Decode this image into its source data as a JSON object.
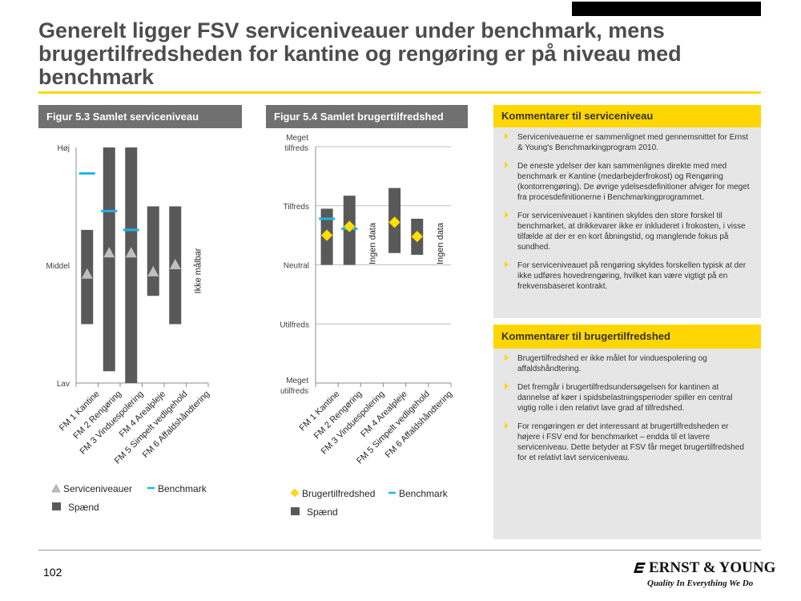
{
  "title": "Generelt ligger FSV serviceniveauer under benchmark, mens brugertilfredsheden for kantine og rengøring er på niveau med benchmark",
  "page_number": "102",
  "logo": {
    "name": "ERNST & YOUNG",
    "tagline": "Quality In Everything We Do"
  },
  "figure1": {
    "header": "Figur 5.3 Samlet serviceniveau"
  },
  "figure2": {
    "header": "Figur 5.4 Samlet brugertilfredshed"
  },
  "comments1": {
    "header": "Kommentarer til serviceniveau",
    "items": [
      "Serviceniveauerne er sammenlignet med gennemsnittet for Ernst & Young's Benchmarkingprogram 2010.",
      "De eneste ydelser der kan sammenlignes direkte med med benchmark er Kantine (medarbejderfrokost) og Rengøring (kontorrengøring). De øvrige ydelsesdefinitioner afviger for meget fra procesdefinitionerne i Benchmarkingprogrammet.",
      "For serviceniveauet i kantinen skyldes den store forskel til benchmarket, at drikkevarer ikke er inkluderet i frokosten, i visse tilfælde at der er en kort åbningstid, og manglende fokus på sundhed.",
      "For serviceniveauet på rengøring skyldes forskellen typisk at der ikke udføres hovedrengøring, hvilket kan være vigtigt på en frekvensbaseret kontrakt."
    ]
  },
  "comments2": {
    "header": "Kommentarer til brugertilfredshed",
    "items": [
      "Brugertilfredshed er ikke målet for vinduespolering og affaldshåndtering.",
      "Det fremgår i brugertilfredsundersøgelsen for kantinen at dannelse af køer i spidsbelastningsperioder spiller en central vigtig rolle i den relativt lave grad af tilfredshed.",
      "For rengøringen er det interessant at brugertilfredsheden er højere i FSV end for benchmarket – endda til et lavere serviceniveau. Dette betyder at FSV får meget brugertilfredshed for et relativt lavt serviceniveau."
    ]
  },
  "chart_data": [
    {
      "type": "bar",
      "title": "Figur 5.3 Samlet serviceniveau",
      "categories": [
        "FM 1 Kantine",
        "FM 2 Rengøring",
        "FM 3 Vinduespolering",
        "FM 4 Arealpleje",
        "FM 5 Simpelt vedligehold",
        "FM 6 Affaldshåndtering"
      ],
      "y_tick_labels": [
        "Høj",
        "Middel",
        "Lav"
      ],
      "ylim": [
        0,
        100
      ],
      "range_low": [
        25,
        5,
        0,
        37,
        25,
        null
      ],
      "range_high": [
        65,
        100,
        100,
        75,
        75,
        null
      ],
      "serviceniveauer": [
        46,
        55,
        55,
        47,
        50,
        null
      ],
      "benchmark": [
        89,
        73,
        65,
        null,
        null,
        null
      ],
      "annotations": [
        {
          "category": "FM 6 Affaldshåndtering",
          "text": "Ikke målbar"
        }
      ],
      "legend": {
        "level_label": "Serviceniveauer",
        "benchmark_label": "Benchmark",
        "range_label": "Spænd"
      }
    },
    {
      "type": "bar",
      "title": "Figur 5.4 Samlet brugertilfredshed",
      "categories": [
        "FM 1 Kantine",
        "FM 2 Rengøring",
        "FM 3 Vinduespolering",
        "FM 4 Arealpleje",
        "FM 5 Simpelt vedligehold",
        "FM 6 Affaldshåndtering"
      ],
      "y_tick_labels": [
        "Meget tilfreds",
        "Tilfreds",
        "Neutral",
        "Utilfreds",
        "Meget utilfreds"
      ],
      "ylim": [
        1,
        5
      ],
      "range_low": [
        3.0,
        3.0,
        null,
        3.2,
        3.17,
        null
      ],
      "range_high": [
        3.95,
        4.17,
        null,
        4.3,
        3.78,
        null
      ],
      "brugertilfredshed": [
        3.5,
        3.65,
        null,
        3.72,
        3.48,
        null
      ],
      "benchmark": [
        3.78,
        3.61,
        null,
        null,
        null,
        null
      ],
      "annotations": [
        {
          "category": "FM 3 Vinduespolering",
          "text": "Ingen data"
        },
        {
          "category": "FM 6 Affaldshåndtering",
          "text": "Ingen data"
        }
      ],
      "legend": {
        "level_label": "Brugertilfredshed",
        "benchmark_label": "Benchmark",
        "range_label": "Spænd"
      }
    }
  ],
  "colors": {
    "accent": "#ffd600",
    "range": "#595959",
    "benchmark": "#1eb4e6",
    "marker_level": "#bfbfbf",
    "marker_sat": "#ffe000",
    "header_gray": "#707070",
    "panel_bg": "#e6e6e6"
  }
}
